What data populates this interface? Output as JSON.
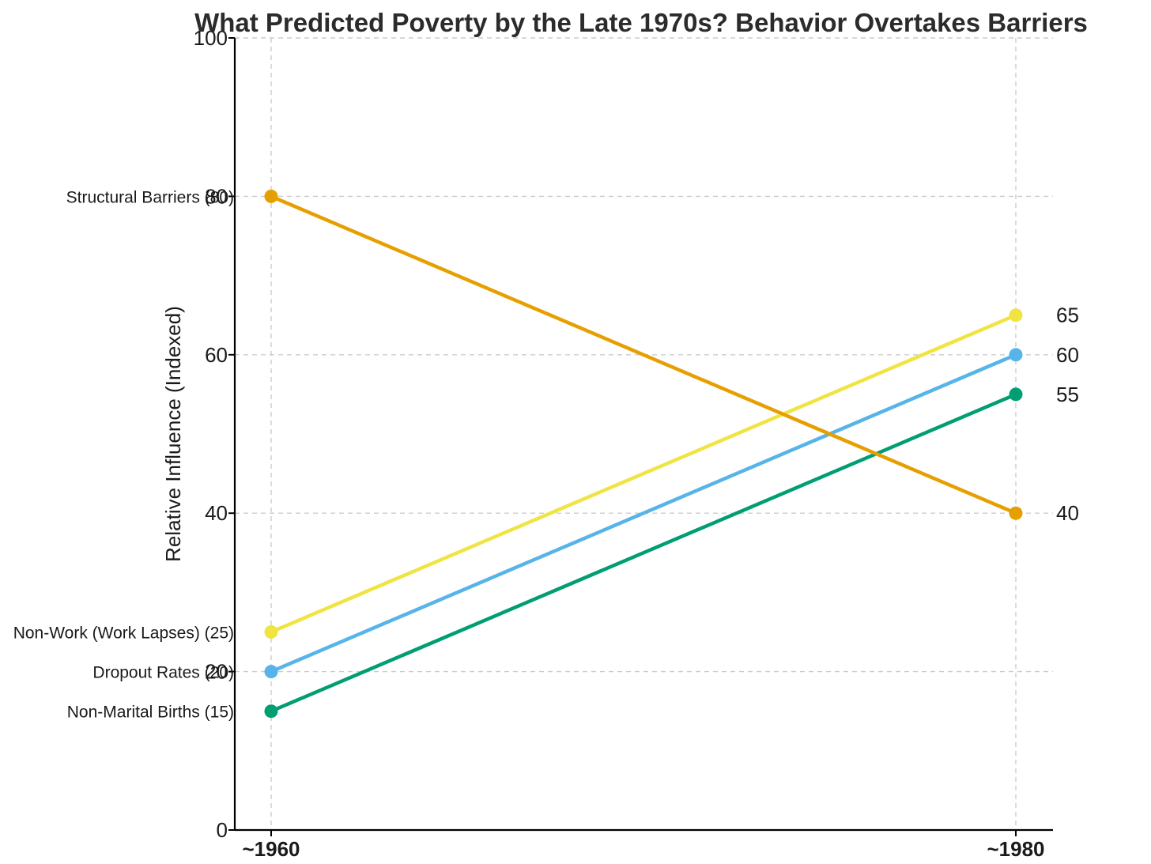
{
  "chart_data": {
    "type": "line",
    "variant": "slope-graph",
    "title": "What Predicted Poverty by the Late 1970s? Behavior Overtakes Barriers",
    "ylabel": "Relative Influence (Indexed)",
    "x_categories": [
      "~1960",
      "~1980"
    ],
    "ylim": [
      0,
      100
    ],
    "yticks": [
      0,
      20,
      40,
      60,
      80,
      100
    ],
    "grid": {
      "horizontal": true,
      "vertical": true,
      "style": "dashed",
      "color": "#cccccc"
    },
    "legend_position": "none (series labeled directly beside line endpoints)",
    "axis_color": "#000000",
    "text_color": "#1a1a1a",
    "series": [
      {
        "name": "Structural Barriers",
        "start_label": "Structural Barriers (80)",
        "values": [
          80,
          40
        ],
        "end_label": "40",
        "color": "#E69F00"
      },
      {
        "name": "Non-Work (Work Lapses)",
        "start_label": "Non-Work (Work Lapses) (25)",
        "values": [
          25,
          65
        ],
        "end_label": "65",
        "color": "#F0E442"
      },
      {
        "name": "Dropout Rates",
        "start_label": "Dropout Rates (20)",
        "values": [
          20,
          60
        ],
        "end_label": "60",
        "color": "#56B4E9"
      },
      {
        "name": "Non-Marital Births",
        "start_label": "Non-Marital Births (15)",
        "values": [
          15,
          55
        ],
        "end_label": "55",
        "color": "#009E73"
      }
    ]
  }
}
